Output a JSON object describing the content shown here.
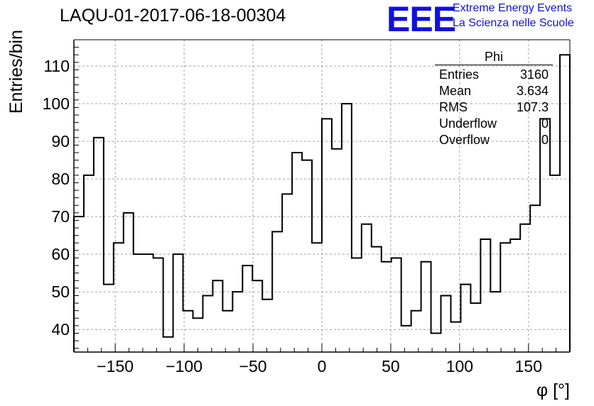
{
  "header": {
    "run_title": "LAQU-01-2017-06-18-00304",
    "logo_text": "EEE",
    "logo_line1": "Extreme Energy Events",
    "logo_line2": "La Scienza nelle Scuole"
  },
  "stats": {
    "title": "Phi",
    "rows": [
      {
        "label": "Entries",
        "value": "3160"
      },
      {
        "label": "Mean",
        "value": "3.634"
      },
      {
        "label": "RMS",
        "value": "107.3"
      },
      {
        "label": "Underflow",
        "value": "0"
      },
      {
        "label": "Overflow",
        "value": "0"
      }
    ]
  },
  "chart_data": {
    "type": "histogram",
    "title": "LAQU-01-2017-06-18-00304",
    "xlabel": "φ [°]",
    "ylabel": "Entries/bin",
    "xlim": [
      -180,
      180
    ],
    "ylim": [
      34,
      117
    ],
    "bin_width": 7.2,
    "bin_edges_start": -180,
    "values": [
      70,
      81,
      91,
      52,
      63,
      71,
      60,
      60,
      59,
      38,
      60,
      45,
      43,
      49,
      53,
      45,
      50,
      57,
      53,
      48,
      66,
      76,
      87,
      85,
      63,
      96,
      88,
      100,
      59,
      68,
      62,
      58,
      59,
      41,
      45,
      58,
      39,
      49,
      42,
      52,
      47,
      64,
      50,
      63,
      64,
      68,
      73,
      96,
      81,
      113
    ],
    "x_ticks": [
      -150,
      -100,
      -50,
      0,
      50,
      100,
      150
    ],
    "x_tick_labels": [
      "−150",
      "−100",
      "−50",
      "0",
      "50",
      "100",
      "150"
    ],
    "y_ticks": [
      40,
      50,
      60,
      70,
      80,
      90,
      100,
      110
    ],
    "y_tick_labels": [
      "40",
      "50",
      "60",
      "70",
      "80",
      "90",
      "100",
      "110"
    ],
    "grid": true,
    "line_color": "#000000",
    "grid_color": "#a0a0a0"
  }
}
